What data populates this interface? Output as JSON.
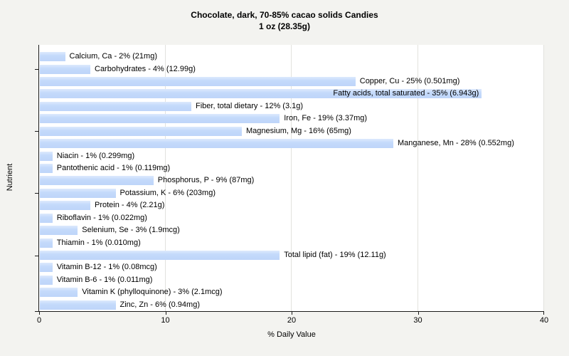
{
  "chart_data": {
    "type": "bar",
    "orientation": "horizontal",
    "title": "Chocolate, dark, 70-85% cacao solids Candies",
    "subtitle": "1 oz (28.35g)",
    "xlabel": "% Daily Value",
    "ylabel": "Nutrient",
    "xlim": [
      0,
      40
    ],
    "xticks": [
      0,
      10,
      20,
      30,
      40
    ],
    "grid": "vertical gridlines at 10,20,30,40",
    "ytick_rows": [
      2,
      7,
      12,
      17
    ],
    "legend": "none",
    "items": [
      {
        "label": "Calcium, Ca - 2% (21mg)",
        "nutrient": "Calcium, Ca",
        "percent_dv": 2,
        "amount": "21mg"
      },
      {
        "label": "Carbohydrates - 4% (12.99g)",
        "nutrient": "Carbohydrates",
        "percent_dv": 4,
        "amount": "12.99g"
      },
      {
        "label": "Copper, Cu - 25% (0.501mg)",
        "nutrient": "Copper, Cu",
        "percent_dv": 25,
        "amount": "0.501mg"
      },
      {
        "label": "Fatty acids, total saturated - 35% (6.943g)",
        "nutrient": "Fatty acids, total saturated",
        "percent_dv": 35,
        "amount": "6.943g"
      },
      {
        "label": "Fiber, total dietary - 12% (3.1g)",
        "nutrient": "Fiber, total dietary",
        "percent_dv": 12,
        "amount": "3.1g"
      },
      {
        "label": "Iron, Fe - 19% (3.37mg)",
        "nutrient": "Iron, Fe",
        "percent_dv": 19,
        "amount": "3.37mg"
      },
      {
        "label": "Magnesium, Mg - 16% (65mg)",
        "nutrient": "Magnesium, Mg",
        "percent_dv": 16,
        "amount": "65mg"
      },
      {
        "label": "Manganese, Mn - 28% (0.552mg)",
        "nutrient": "Manganese, Mn",
        "percent_dv": 28,
        "amount": "0.552mg"
      },
      {
        "label": "Niacin - 1% (0.299mg)",
        "nutrient": "Niacin",
        "percent_dv": 1,
        "amount": "0.299mg"
      },
      {
        "label": "Pantothenic acid - 1% (0.119mg)",
        "nutrient": "Pantothenic acid",
        "percent_dv": 1,
        "amount": "0.119mg"
      },
      {
        "label": "Phosphorus, P - 9% (87mg)",
        "nutrient": "Phosphorus, P",
        "percent_dv": 9,
        "amount": "87mg"
      },
      {
        "label": "Potassium, K - 6% (203mg)",
        "nutrient": "Potassium, K",
        "percent_dv": 6,
        "amount": "203mg"
      },
      {
        "label": "Protein - 4% (2.21g)",
        "nutrient": "Protein",
        "percent_dv": 4,
        "amount": "2.21g"
      },
      {
        "label": "Riboflavin - 1% (0.022mg)",
        "nutrient": "Riboflavin",
        "percent_dv": 1,
        "amount": "0.022mg"
      },
      {
        "label": "Selenium, Se - 3% (1.9mcg)",
        "nutrient": "Selenium, Se",
        "percent_dv": 3,
        "amount": "1.9mcg"
      },
      {
        "label": "Thiamin - 1% (0.010mg)",
        "nutrient": "Thiamin",
        "percent_dv": 1,
        "amount": "0.010mg"
      },
      {
        "label": "Total lipid (fat) - 19% (12.11g)",
        "nutrient": "Total lipid (fat)",
        "percent_dv": 19,
        "amount": "12.11g"
      },
      {
        "label": "Vitamin B-12 - 1% (0.08mcg)",
        "nutrient": "Vitamin B-12",
        "percent_dv": 1,
        "amount": "0.08mcg"
      },
      {
        "label": "Vitamin B-6 - 1% (0.011mg)",
        "nutrient": "Vitamin B-6",
        "percent_dv": 1,
        "amount": "0.011mg"
      },
      {
        "label": "Vitamin K (phylloquinone) - 3% (2.1mcg)",
        "nutrient": "Vitamin K (phylloquinone)",
        "percent_dv": 3,
        "amount": "2.1mcg"
      },
      {
        "label": "Zinc, Zn - 6% (0.94mg)",
        "nutrient": "Zinc, Zn",
        "percent_dv": 6,
        "amount": "0.94mg"
      }
    ]
  },
  "colors": {
    "figure_bg": "#f3f3f0",
    "plot_bg": "#ffffff",
    "bar_fill": "#c0d8fa",
    "bar_fill_top": "#dde9fd",
    "gridline": "#e2e2de",
    "axis": "#1a1a1a",
    "text": "#000000"
  }
}
